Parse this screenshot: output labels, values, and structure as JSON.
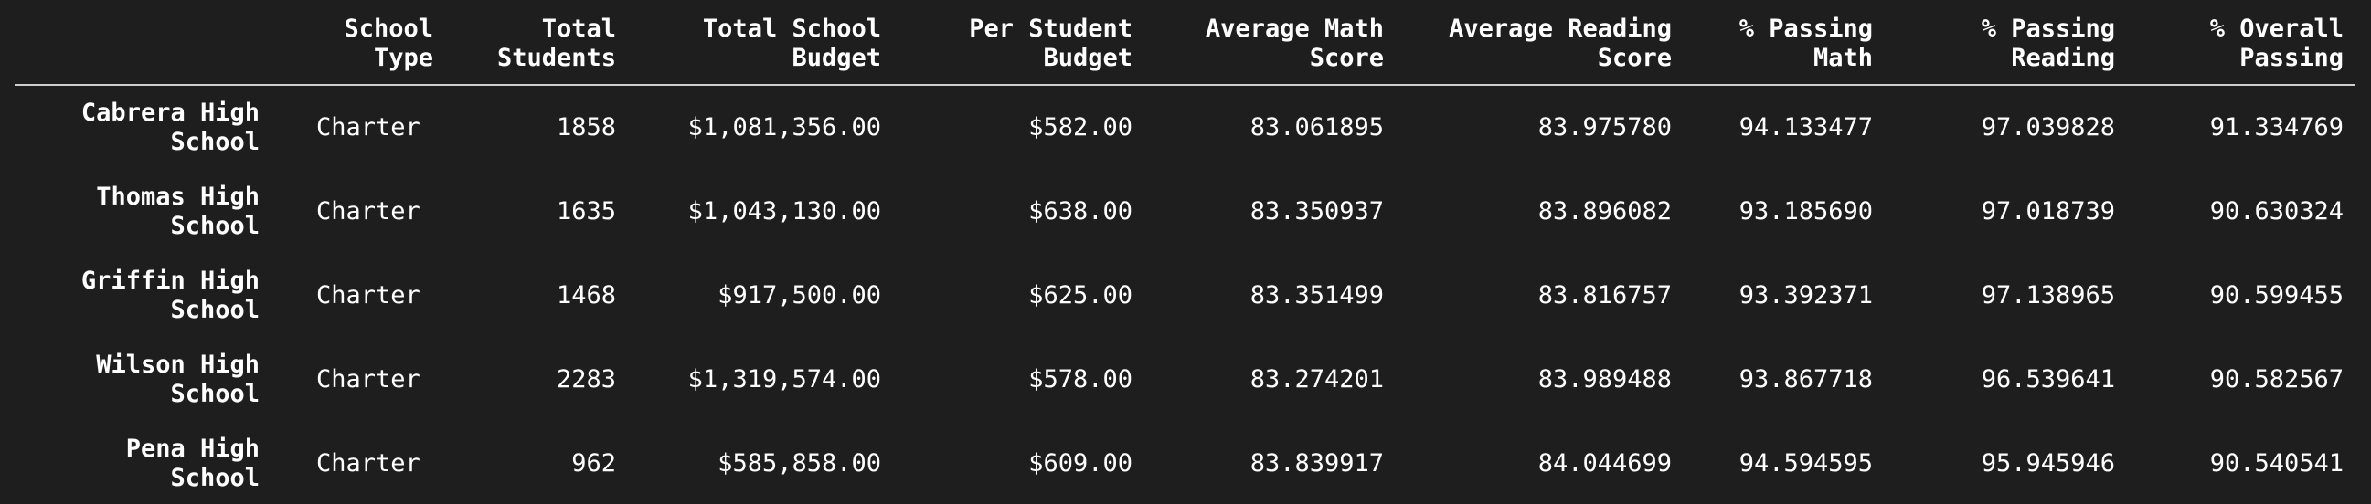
{
  "table": {
    "columns": [
      "",
      "School Type",
      "Total Students",
      "Total School Budget",
      "Per Student Budget",
      "Average Math Score",
      "Average Reading Score",
      "% Passing Math",
      "% Passing Reading",
      "% Overall Passing"
    ],
    "rows": [
      {
        "school": "Cabrera High School",
        "cells": [
          "Charter",
          "1858",
          "$1,081,356.00",
          "$582.00",
          "83.061895",
          "83.975780",
          "94.133477",
          "97.039828",
          "91.334769"
        ]
      },
      {
        "school": "Thomas High School",
        "cells": [
          "Charter",
          "1635",
          "$1,043,130.00",
          "$638.00",
          "83.350937",
          "83.896082",
          "93.185690",
          "97.018739",
          "90.630324"
        ]
      },
      {
        "school": "Griffin High School",
        "cells": [
          "Charter",
          "1468",
          "$917,500.00",
          "$625.00",
          "83.351499",
          "83.816757",
          "93.392371",
          "97.138965",
          "90.599455"
        ]
      },
      {
        "school": "Wilson High School",
        "cells": [
          "Charter",
          "2283",
          "$1,319,574.00",
          "$578.00",
          "83.274201",
          "83.989488",
          "93.867718",
          "96.539641",
          "90.582567"
        ]
      },
      {
        "school": "Pena High School",
        "cells": [
          "Charter",
          "962",
          "$585,858.00",
          "$609.00",
          "83.839917",
          "84.044699",
          "94.594595",
          "95.945946",
          "90.540541"
        ]
      }
    ]
  }
}
